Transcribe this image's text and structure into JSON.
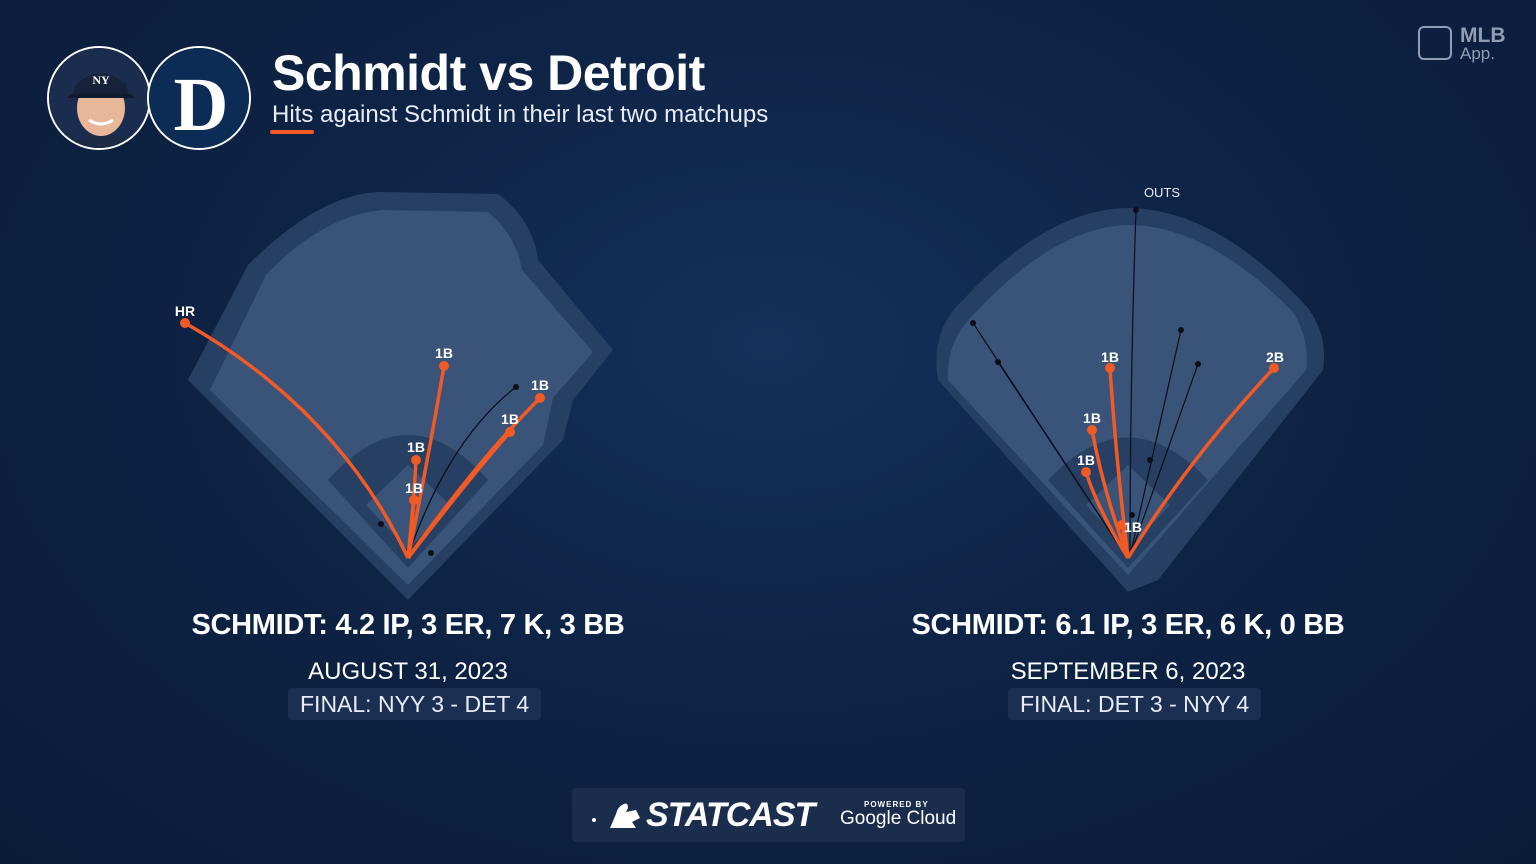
{
  "header": {
    "title": "Schmidt vs Detroit",
    "subtitle": "Hits against Schmidt in their last two matchups",
    "brand_line1": "MLB",
    "brand_line2": "App."
  },
  "team_logo_letter": "D",
  "games": [
    {
      "stat_line": "SCHMIDT: 4.2 IP, 3 ER, 7 K, 3 BB",
      "date": "AUGUST 31, 2023",
      "final": "FINAL: NYY 3 - DET 4",
      "hits": [
        {
          "label": "HR"
        },
        {
          "label": "1B"
        },
        {
          "label": "1B"
        },
        {
          "label": "1B"
        },
        {
          "label": "1B"
        },
        {
          "label": "1B"
        }
      ]
    },
    {
      "stat_line": "SCHMIDT: 6.1 IP, 3 ER, 6 K, 0 BB",
      "date": "SEPTEMBER 6, 2023",
      "final": "FINAL: DET 3 - NYY 4",
      "outs_label": "OUTS",
      "hits": [
        {
          "label": "1B"
        },
        {
          "label": "2B"
        },
        {
          "label": "1B"
        },
        {
          "label": "1B"
        },
        {
          "label": "1B"
        }
      ]
    }
  ],
  "footer": {
    "brand": "STATCAST",
    "powered": "POWERED BY",
    "partner": "Google Cloud"
  },
  "colors": {
    "hit_line": "#f15a24",
    "out_line": "#0a0f1a",
    "field_outer": "#273f63",
    "field_inner": "#3a5479"
  }
}
